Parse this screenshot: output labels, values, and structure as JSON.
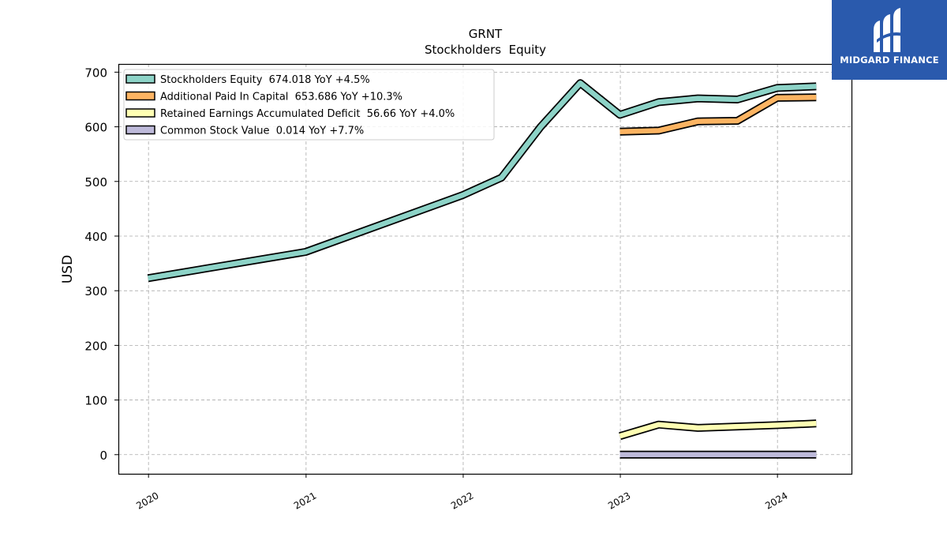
{
  "chart_data": {
    "type": "line",
    "title": "GRNT",
    "subtitle": "Stockholders  Equity",
    "ylabel": "USD",
    "xlabel": "",
    "ylim": [
      -35,
      715
    ],
    "yticks": [
      0,
      100,
      200,
      300,
      400,
      500,
      600,
      700
    ],
    "xlim": [
      "2019-10-23",
      "2024-06-21"
    ],
    "xticks": [
      "2020",
      "2021",
      "2022",
      "2023",
      "2024"
    ],
    "grid": true,
    "legend_position": "top-left",
    "series": [
      {
        "name": "Stockholders Equity  674.018 YoY +4.5%",
        "color": "#8dd3c7",
        "points": [
          [
            "2019-12-31",
            323
          ],
          [
            "2020-12-31",
            371
          ],
          [
            "2021-12-31",
            475
          ],
          [
            "2022-03-31",
            507
          ],
          [
            "2022-06-30",
            600
          ],
          [
            "2022-09-30",
            680
          ],
          [
            "2022-12-31",
            622
          ],
          [
            "2023-03-31",
            645
          ],
          [
            "2023-06-30",
            652
          ],
          [
            "2023-09-30",
            650
          ],
          [
            "2023-12-31",
            671
          ],
          [
            "2024-03-31",
            674
          ]
        ]
      },
      {
        "name": "Additional Paid In Capital  653.686 YoY +10.3%",
        "color": "#fdb462",
        "points": [
          [
            "2022-12-31",
            591
          ],
          [
            "2023-03-31",
            593
          ],
          [
            "2023-06-30",
            610
          ],
          [
            "2023-09-30",
            611
          ],
          [
            "2023-12-31",
            653
          ],
          [
            "2024-03-31",
            654
          ]
        ]
      },
      {
        "name": "Retained Earnings Accumulated Deficit  56.66 YoY +4.0%",
        "color": "#ffffb3",
        "points": [
          [
            "2022-12-31",
            34
          ],
          [
            "2023-03-31",
            55
          ],
          [
            "2023-06-30",
            49
          ],
          [
            "2023-12-31",
            54
          ],
          [
            "2024-03-31",
            57
          ]
        ]
      },
      {
        "name": "Common Stock Value  0.014 YoY +7.7%",
        "color": "#bebada",
        "points": [
          [
            "2022-12-31",
            0
          ],
          [
            "2023-03-31",
            0
          ],
          [
            "2023-06-30",
            0
          ],
          [
            "2023-09-30",
            0
          ],
          [
            "2023-12-31",
            0
          ],
          [
            "2024-03-31",
            0
          ]
        ]
      }
    ]
  },
  "logo": {
    "text": "MIDGARD FINANCE",
    "color": "#2a5aad"
  }
}
